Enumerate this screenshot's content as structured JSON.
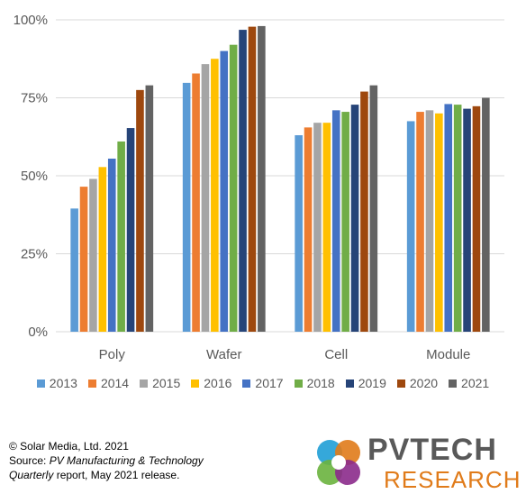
{
  "chart_data": {
    "type": "bar",
    "categories": [
      "Poly",
      "Wafer",
      "Cell",
      "Module"
    ],
    "yticks": [
      "0%",
      "25%",
      "50%",
      "75%",
      "100%"
    ],
    "ylim": [
      0,
      100
    ],
    "grid": true,
    "legend_position": "bottom",
    "series": [
      {
        "name": "2013",
        "color": "#5b9bd5",
        "values": [
          39.5,
          79.8,
          63,
          67.5
        ]
      },
      {
        "name": "2014",
        "color": "#ed7d31",
        "values": [
          46.5,
          82.8,
          65.5,
          70.5
        ]
      },
      {
        "name": "2015",
        "color": "#a5a5a5",
        "values": [
          49,
          85.8,
          67,
          71
        ]
      },
      {
        "name": "2016",
        "color": "#ffc000",
        "values": [
          52.8,
          87.5,
          67,
          70
        ]
      },
      {
        "name": "2017",
        "color": "#4472c4",
        "values": [
          55.5,
          90,
          71,
          73
        ]
      },
      {
        "name": "2018",
        "color": "#70ad47",
        "values": [
          61,
          92,
          70.5,
          72.8
        ]
      },
      {
        "name": "2019",
        "color": "#264478",
        "values": [
          65.3,
          96.8,
          72.8,
          71.5
        ]
      },
      {
        "name": "2020",
        "color": "#9e480e",
        "values": [
          77.5,
          97.8,
          77,
          72.3
        ]
      },
      {
        "name": "2021",
        "color": "#636363",
        "values": [
          79,
          98,
          79,
          75
        ]
      }
    ]
  },
  "footer": {
    "line1": "© Solar Media, Ltd. 2021",
    "source_prefix": "Source: ",
    "source_italic": "PV Manufacturing & Technology",
    "line3_italic": "Quarterly",
    "line3_rest": " report, May 2021 release."
  },
  "logo": {
    "main_text": "PVTECH",
    "sub_text": "RESEARCH",
    "colors": [
      "#1f9fd6",
      "#e07b1a",
      "#8b2a8b",
      "#6ab23e"
    ]
  }
}
